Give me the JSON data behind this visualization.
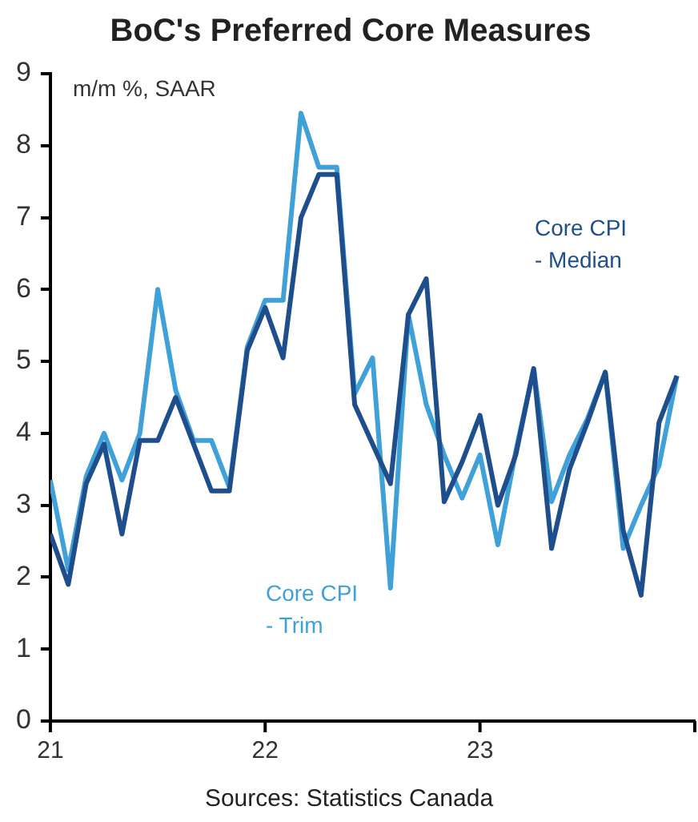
{
  "chart_data": {
    "type": "line",
    "title": "BoC's Preferred Core Measures",
    "ylabel": "m/m %, SAAR",
    "x": [
      "2021-01",
      "2021-02",
      "2021-03",
      "2021-04",
      "2021-05",
      "2021-06",
      "2021-07",
      "2021-08",
      "2021-09",
      "2021-10",
      "2021-11",
      "2021-12",
      "2022-01",
      "2022-02",
      "2022-03",
      "2022-04",
      "2022-05",
      "2022-06",
      "2022-07",
      "2022-08",
      "2022-09",
      "2022-10",
      "2022-11",
      "2022-12",
      "2023-01",
      "2023-02",
      "2023-03",
      "2023-04",
      "2023-05",
      "2023-06",
      "2023-07",
      "2023-08",
      "2023-09",
      "2023-10",
      "2023-11",
      "2023-12"
    ],
    "series": [
      {
        "name": "Core CPI\n- Median",
        "color": "#1f4e8c",
        "values": [
          2.6,
          1.9,
          3.3,
          3.85,
          2.6,
          3.9,
          3.9,
          4.5,
          3.85,
          3.2,
          3.2,
          5.15,
          5.75,
          5.05,
          7.0,
          7.6,
          7.6,
          4.4,
          3.85,
          3.3,
          5.65,
          6.15,
          3.05,
          3.6,
          4.25,
          3.0,
          3.7,
          4.9,
          2.4,
          3.5,
          4.15,
          4.85,
          2.65,
          1.75,
          4.15,
          4.8
        ]
      },
      {
        "name": "Core CPI\n- Trim",
        "color": "#40a0d8",
        "values": [
          3.35,
          2.1,
          3.4,
          4.0,
          3.35,
          4.0,
          6.0,
          4.6,
          3.9,
          3.9,
          3.25,
          5.2,
          5.85,
          5.85,
          8.45,
          7.7,
          7.7,
          4.55,
          5.05,
          1.85,
          5.65,
          4.4,
          3.7,
          3.1,
          3.7,
          2.45,
          3.75,
          4.9,
          3.05,
          3.7,
          4.2,
          4.85,
          2.4,
          3.0,
          3.55,
          4.8
        ]
      }
    ],
    "xlim": [
      "2021-01",
      "2024-01"
    ],
    "xticks": [
      {
        "value": "2021-01",
        "label": "21"
      },
      {
        "value": "2022-01",
        "label": "22"
      },
      {
        "value": "2023-01",
        "label": "23"
      }
    ],
    "ylim": [
      0,
      9
    ],
    "yticks": [
      0,
      1,
      2,
      3,
      4,
      5,
      6,
      7,
      8,
      9
    ],
    "grid": false,
    "legend": false,
    "marker": "none",
    "line_style": "solid",
    "annotations": [
      "Sources: Statistics Canada"
    ]
  }
}
